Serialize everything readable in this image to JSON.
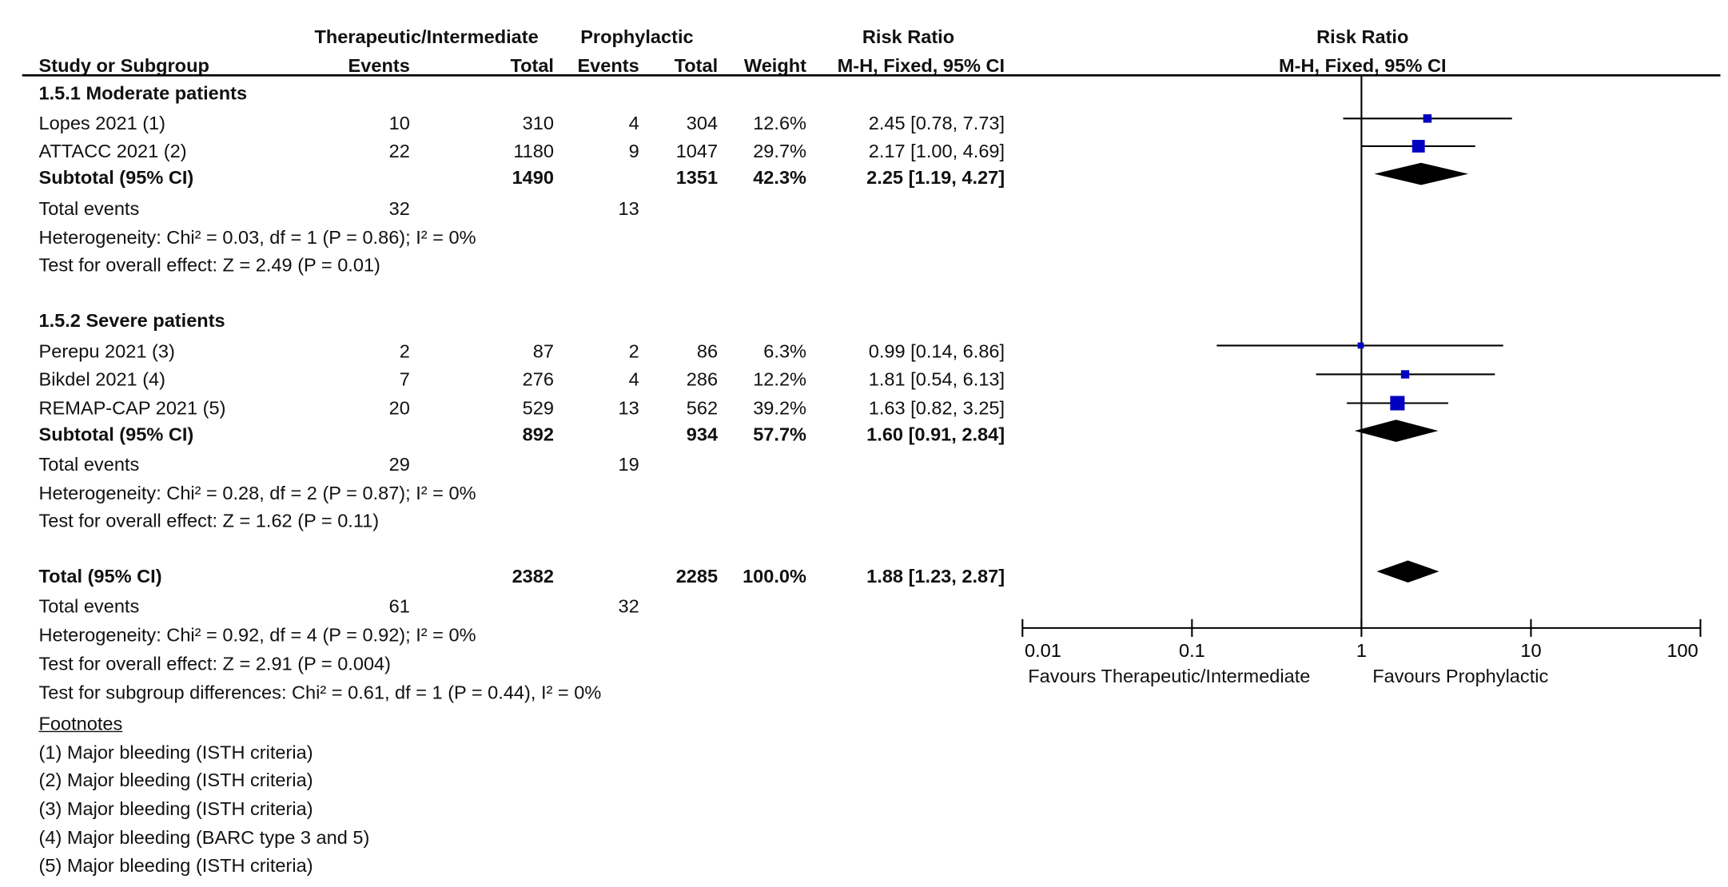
{
  "header": {
    "group1": "Therapeutic/Intermediate",
    "group2": "Prophylactic",
    "rr_title": "Risk Ratio",
    "study_col": "Study or Subgroup",
    "events": "Events",
    "total": "Total",
    "weight": "Weight",
    "method": "M-H, Fixed, 95% CI",
    "plot_title": "Risk Ratio",
    "plot_method": "M-H, Fixed, 95% CI"
  },
  "rows": [
    {
      "kind": "heading",
      "label": "1.5.1 Moderate patients"
    },
    {
      "kind": "study",
      "label": "Lopes 2021 (1)",
      "e1": "10",
      "n1": "310",
      "e2": "4",
      "n2": "304",
      "w": "12.6%",
      "ci": "2.45 [0.78, 7.73]"
    },
    {
      "kind": "study",
      "label": "ATTACC 2021 (2)",
      "e1": "22",
      "n1": "1180",
      "e2": "9",
      "n2": "1047",
      "w": "29.7%",
      "ci": "2.17 [1.00, 4.69]"
    },
    {
      "kind": "subtotal",
      "label": "Subtotal (95% CI)",
      "n1": "1490",
      "n2": "1351",
      "w": "42.3%",
      "ci": "2.25 [1.19, 4.27]"
    },
    {
      "kind": "events",
      "label": "Total events",
      "e1": "32",
      "e2": "13"
    },
    {
      "kind": "text",
      "label": "Heterogeneity: Chi² = 0.03, df = 1 (P = 0.86); I² = 0%"
    },
    {
      "kind": "text",
      "label": "Test for overall effect: Z = 2.49 (P = 0.01)"
    },
    {
      "kind": "heading",
      "label": "1.5.2 Severe patients"
    },
    {
      "kind": "study",
      "label": "Perepu 2021 (3)",
      "e1": "2",
      "n1": "87",
      "e2": "2",
      "n2": "86",
      "w": "6.3%",
      "ci": "0.99 [0.14, 6.86]"
    },
    {
      "kind": "study",
      "label": "Bikdel 2021 (4)",
      "e1": "7",
      "n1": "276",
      "e2": "4",
      "n2": "286",
      "w": "12.2%",
      "ci": "1.81 [0.54, 6.13]"
    },
    {
      "kind": "study",
      "label": "REMAP-CAP 2021 (5)",
      "e1": "20",
      "n1": "529",
      "e2": "13",
      "n2": "562",
      "w": "39.2%",
      "ci": "1.63 [0.82, 3.25]"
    },
    {
      "kind": "subtotal",
      "label": "Subtotal (95% CI)",
      "n1": "892",
      "n2": "934",
      "w": "57.7%",
      "ci": "1.60 [0.91, 2.84]"
    },
    {
      "kind": "events",
      "label": "Total events",
      "e1": "29",
      "e2": "19"
    },
    {
      "kind": "text",
      "label": "Heterogeneity: Chi² = 0.28, df = 2 (P = 0.87); I² = 0%"
    },
    {
      "kind": "text",
      "label": "Test for overall effect: Z = 1.62 (P = 0.11)"
    },
    {
      "kind": "subtotal",
      "label": "Total (95% CI)",
      "n1": "2382",
      "n2": "2285",
      "w": "100.0%",
      "ci": "1.88 [1.23, 2.87]"
    },
    {
      "kind": "events",
      "label": "Total events",
      "e1": "61",
      "e2": "32"
    },
    {
      "kind": "text",
      "label": "Heterogeneity: Chi² = 0.92, df = 4 (P = 0.92); I² = 0%"
    },
    {
      "kind": "text",
      "label": "Test for overall effect: Z = 2.91 (P = 0.004)"
    },
    {
      "kind": "text",
      "label": "Test for subgroup differences: Chi² = 0.61, df = 1 (P = 0.44), I² = 0%"
    },
    {
      "kind": "foothead",
      "label": "Footnotes"
    },
    {
      "kind": "text",
      "label": "(1) Major bleeding (ISTH criteria)"
    },
    {
      "kind": "text",
      "label": "(2) Major bleeding (ISTH criteria)"
    },
    {
      "kind": "text",
      "label": "(3) Major bleeding (ISTH criteria)"
    },
    {
      "kind": "text",
      "label": "(4) Major bleeding (BARC type 3 and 5)"
    },
    {
      "kind": "text",
      "label": "(5) Major bleeding (ISTH criteria)"
    }
  ],
  "chart_data": {
    "type": "forest",
    "scale": "log",
    "xlim": [
      0.01,
      100
    ],
    "ticks": [
      "0.01",
      "0.1",
      "1",
      "10",
      "100"
    ],
    "tick_values": [
      0.01,
      0.1,
      1,
      10,
      100
    ],
    "reference": 1,
    "left_label": "Favours Therapeutic/Intermediate",
    "right_label": "Favours Prophylactic",
    "box_color": "#0000c0",
    "studies": [
      {
        "name": "Lopes 2021",
        "rr": 2.45,
        "lo": 0.78,
        "hi": 7.73,
        "weight": 12.6
      },
      {
        "name": "ATTACC 2021",
        "rr": 2.17,
        "lo": 1.0,
        "hi": 4.69,
        "weight": 29.7
      },
      {
        "name": "Perepu 2021",
        "rr": 0.99,
        "lo": 0.14,
        "hi": 6.86,
        "weight": 6.3
      },
      {
        "name": "Bikdel 2021",
        "rr": 1.81,
        "lo": 0.54,
        "hi": 6.13,
        "weight": 12.2
      },
      {
        "name": "REMAP-CAP 2021",
        "rr": 1.63,
        "lo": 0.82,
        "hi": 3.25,
        "weight": 39.2
      }
    ],
    "pooled": [
      {
        "name": "Subtotal moderate",
        "rr": 2.25,
        "lo": 1.19,
        "hi": 4.27
      },
      {
        "name": "Subtotal severe",
        "rr": 1.6,
        "lo": 0.91,
        "hi": 2.84
      },
      {
        "name": "Total",
        "rr": 1.88,
        "lo": 1.23,
        "hi": 2.87
      }
    ]
  }
}
